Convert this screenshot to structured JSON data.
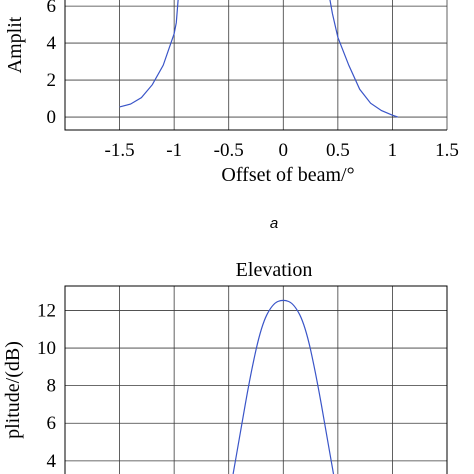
{
  "chart_data": [
    {
      "type": "line",
      "ylabel": "Amplit",
      "xlabel": "Offset of beam/°",
      "subfigure_label": "a",
      "xlim": [
        -2.0,
        1.5
      ],
      "ylim": [
        -0.7,
        6.6
      ],
      "x_ticks": [
        "-1.5",
        "-1",
        "-0.5",
        "0",
        "0.5",
        "1",
        "1.5"
      ],
      "x_tick_values": [
        -1.5,
        -1.0,
        -0.5,
        0.0,
        0.5,
        1.0,
        1.5
      ],
      "y_ticks": [
        "0",
        "2",
        "4",
        "6"
      ],
      "y_tick_values": [
        0,
        2,
        4,
        6
      ],
      "grid": true,
      "series": [
        {
          "x": [
            -1.5,
            -1.4,
            -1.3,
            -1.2,
            -1.1,
            -1.0,
            -0.98,
            -0.96,
            0.42,
            0.45,
            0.5,
            0.6,
            0.7,
            0.8,
            0.9,
            1.0,
            1.05
          ],
          "y": [
            0.55,
            0.7,
            1.05,
            1.75,
            2.8,
            4.5,
            5.1,
            6.6,
            6.6,
            5.6,
            4.3,
            2.8,
            1.5,
            0.75,
            0.35,
            0.1,
            0.0
          ]
        }
      ]
    },
    {
      "type": "line",
      "title": "Elevation",
      "ylabel": "plitude/(dB)",
      "xlim": [
        -2.0,
        1.5
      ],
      "ylim": [
        3.3,
        13.3
      ],
      "y_ticks": [
        "4",
        "6",
        "8",
        "10",
        "12"
      ],
      "y_tick_values": [
        4,
        6,
        8,
        10,
        12
      ],
      "grid": true,
      "series": [
        {
          "x": [
            -0.46,
            -0.4,
            -0.3,
            -0.2,
            -0.1,
            0.0,
            0.1,
            0.2,
            0.3,
            0.4,
            0.46
          ],
          "y": [
            3.3,
            5.3,
            8.6,
            11.2,
            12.35,
            12.6,
            12.35,
            11.2,
            8.6,
            5.3,
            3.3
          ]
        }
      ]
    }
  ]
}
